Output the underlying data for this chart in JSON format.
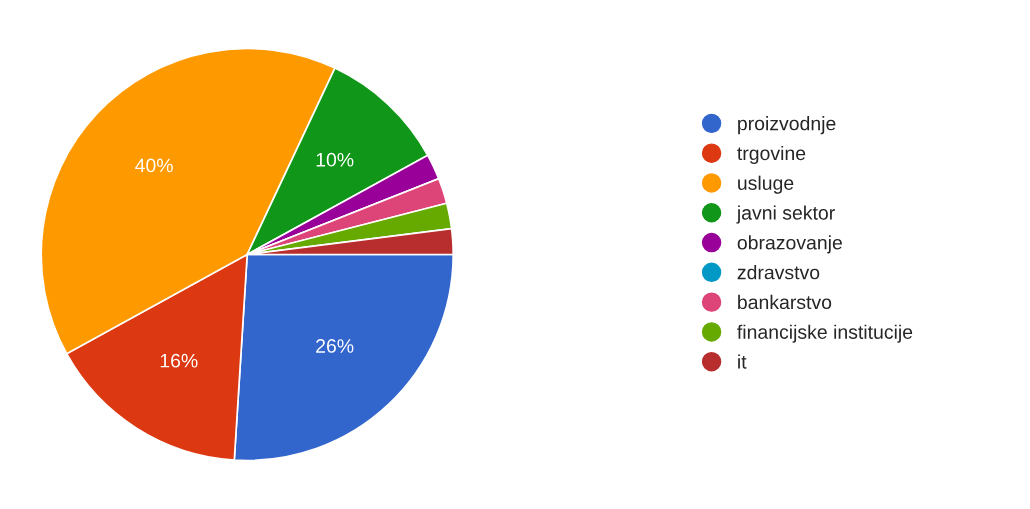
{
  "chart_data": {
    "type": "pie",
    "categories": [
      "proizvodnje",
      "trgovine",
      "usluge",
      "javni sektor",
      "obrazovanje",
      "zdravstvo",
      "bankarstvo",
      "financijske institucije",
      "it"
    ],
    "values": [
      26,
      16,
      40,
      10,
      2,
      0,
      2,
      2,
      2
    ],
    "colors": [
      "#3366cc",
      "#dc3912",
      "#ff9900",
      "#109618",
      "#990099",
      "#0099c6",
      "#dd4477",
      "#66aa00",
      "#b82e2e"
    ],
    "value_labels": [
      "26%",
      "16%",
      "40%",
      "10%",
      null,
      null,
      null,
      null,
      null
    ],
    "legend": "right"
  }
}
